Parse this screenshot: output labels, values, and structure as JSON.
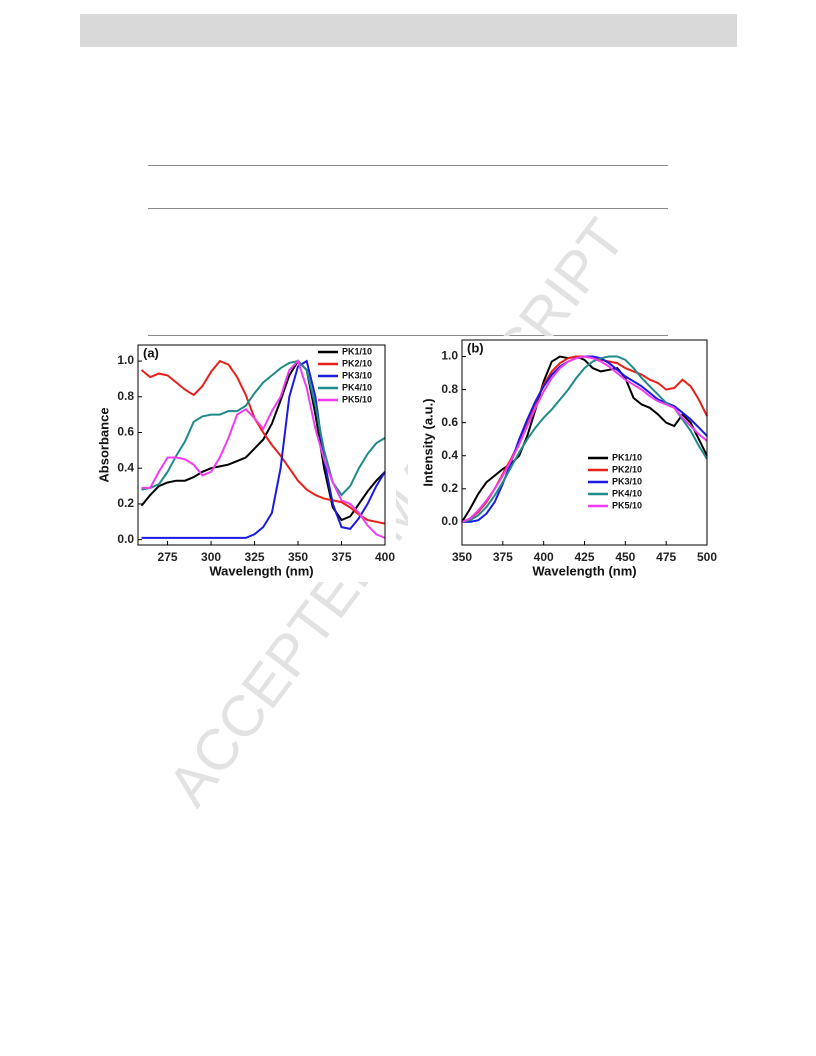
{
  "watermark": "ACCEPTED MANUSCRIPT",
  "chart_data": [
    {
      "type": "line",
      "panel": "(a)",
      "xlabel": "Wavelength (nm)",
      "ylabel": "Absorbance",
      "xlim": [
        258,
        400
      ],
      "xticks": [
        275,
        300,
        325,
        350,
        375,
        400
      ],
      "ylim": [
        -0.03,
        1.09
      ],
      "yticks": [
        {
          "value": 0,
          "label": "0.0"
        },
        0.2,
        0.4,
        0.6,
        0.8,
        {
          "value": 1,
          "label": "1.0"
        }
      ],
      "legend": "upper right",
      "x": [
        260,
        265,
        270,
        275,
        280,
        285,
        290,
        295,
        300,
        305,
        310,
        315,
        320,
        325,
        330,
        335,
        340,
        345,
        350,
        355,
        360,
        365,
        370,
        375,
        380,
        385,
        390,
        395,
        400
      ],
      "series": [
        {
          "name": "PK1/10",
          "color": "#000000",
          "values": [
            0.19,
            0.25,
            0.3,
            0.32,
            0.33,
            0.33,
            0.35,
            0.38,
            0.4,
            0.41,
            0.42,
            0.44,
            0.46,
            0.51,
            0.56,
            0.65,
            0.78,
            0.92,
            1.0,
            0.95,
            0.7,
            0.4,
            0.18,
            0.11,
            0.13,
            0.2,
            0.27,
            0.33,
            0.38
          ]
        },
        {
          "name": "PK2/10",
          "color": "#e8201a",
          "values": [
            0.95,
            0.91,
            0.93,
            0.92,
            0.88,
            0.84,
            0.81,
            0.86,
            0.94,
            1.0,
            0.98,
            0.91,
            0.81,
            0.68,
            0.6,
            0.53,
            0.47,
            0.4,
            0.33,
            0.28,
            0.25,
            0.23,
            0.22,
            0.21,
            0.18,
            0.14,
            0.11,
            0.1,
            0.09
          ]
        },
        {
          "name": "PK3/10",
          "color": "#1a1ae0",
          "values": [
            0.01,
            0.01,
            0.01,
            0.01,
            0.01,
            0.01,
            0.01,
            0.01,
            0.01,
            0.01,
            0.01,
            0.01,
            0.01,
            0.03,
            0.07,
            0.15,
            0.4,
            0.8,
            0.97,
            1.0,
            0.8,
            0.45,
            0.2,
            0.07,
            0.06,
            0.12,
            0.2,
            0.3,
            0.38
          ]
        },
        {
          "name": "PK4/10",
          "color": "#1f8a8a",
          "values": [
            0.28,
            0.29,
            0.31,
            0.38,
            0.47,
            0.55,
            0.66,
            0.69,
            0.7,
            0.7,
            0.72,
            0.72,
            0.75,
            0.82,
            0.88,
            0.92,
            0.96,
            0.99,
            1.0,
            0.95,
            0.75,
            0.5,
            0.32,
            0.25,
            0.3,
            0.4,
            0.48,
            0.54,
            0.57
          ]
        },
        {
          "name": "PK5/10",
          "color": "#f03cf0",
          "values": [
            0.29,
            0.29,
            0.38,
            0.46,
            0.46,
            0.45,
            0.42,
            0.36,
            0.38,
            0.46,
            0.57,
            0.7,
            0.73,
            0.68,
            0.62,
            0.72,
            0.8,
            0.95,
            1.0,
            0.85,
            0.62,
            0.45,
            0.32,
            0.22,
            0.2,
            0.15,
            0.08,
            0.03,
            0.01
          ]
        }
      ]
    },
    {
      "type": "line",
      "panel": "(b)",
      "xlabel": "Wavelength (nm)",
      "ylabel": "Intensity (a.u.)",
      "xlim": [
        350,
        500
      ],
      "xticks": [
        350,
        375,
        400,
        425,
        450,
        475,
        500
      ],
      "ylim": [
        -0.14,
        1.1
      ],
      "yticks": [
        {
          "value": 0,
          "label": "0.0"
        },
        0.2,
        0.4,
        0.6,
        0.8,
        {
          "value": 1,
          "label": "1.0"
        }
      ],
      "legend": "right",
      "x": [
        350,
        355,
        360,
        365,
        370,
        375,
        380,
        385,
        390,
        395,
        400,
        405,
        410,
        415,
        420,
        425,
        430,
        435,
        440,
        445,
        450,
        455,
        460,
        465,
        470,
        475,
        480,
        485,
        490,
        495,
        500
      ],
      "series": [
        {
          "name": "PK1/10",
          "color": "#000000",
          "values": [
            0.0,
            0.08,
            0.17,
            0.24,
            0.28,
            0.32,
            0.35,
            0.4,
            0.52,
            0.68,
            0.85,
            0.97,
            1.0,
            0.99,
            1.0,
            0.98,
            0.93,
            0.91,
            0.92,
            0.93,
            0.87,
            0.75,
            0.71,
            0.69,
            0.65,
            0.6,
            0.58,
            0.65,
            0.6,
            0.5,
            0.4
          ]
        },
        {
          "name": "PK2/10",
          "color": "#e8201a",
          "values": [
            0.0,
            0.02,
            0.06,
            0.12,
            0.2,
            0.29,
            0.38,
            0.48,
            0.6,
            0.72,
            0.83,
            0.91,
            0.96,
            0.99,
            1.0,
            1.0,
            0.99,
            0.98,
            0.97,
            0.96,
            0.93,
            0.91,
            0.89,
            0.86,
            0.84,
            0.8,
            0.81,
            0.86,
            0.82,
            0.74,
            0.64
          ]
        },
        {
          "name": "PK3/10",
          "color": "#1a1ae0",
          "values": [
            0.0,
            0.0,
            0.01,
            0.05,
            0.12,
            0.23,
            0.36,
            0.5,
            0.62,
            0.73,
            0.82,
            0.89,
            0.94,
            0.97,
            0.99,
            1.0,
            1.0,
            0.99,
            0.96,
            0.92,
            0.88,
            0.85,
            0.82,
            0.78,
            0.74,
            0.72,
            0.7,
            0.66,
            0.62,
            0.57,
            0.52
          ]
        },
        {
          "name": "PK4/10",
          "color": "#1f8a8a",
          "values": [
            0.0,
            0.01,
            0.04,
            0.09,
            0.16,
            0.24,
            0.33,
            0.42,
            0.5,
            0.57,
            0.63,
            0.68,
            0.74,
            0.8,
            0.87,
            0.93,
            0.97,
            0.99,
            1.0,
            1.0,
            0.98,
            0.93,
            0.87,
            0.82,
            0.77,
            0.72,
            0.69,
            0.62,
            0.55,
            0.46,
            0.38
          ]
        },
        {
          "name": "PK5/10",
          "color": "#f03cf0",
          "values": [
            0.0,
            0.02,
            0.07,
            0.13,
            0.2,
            0.28,
            0.37,
            0.47,
            0.58,
            0.69,
            0.79,
            0.87,
            0.93,
            0.97,
            0.99,
            1.0,
            0.99,
            0.97,
            0.94,
            0.9,
            0.86,
            0.83,
            0.8,
            0.76,
            0.73,
            0.71,
            0.69,
            0.63,
            0.58,
            0.53,
            0.49
          ]
        }
      ]
    }
  ]
}
